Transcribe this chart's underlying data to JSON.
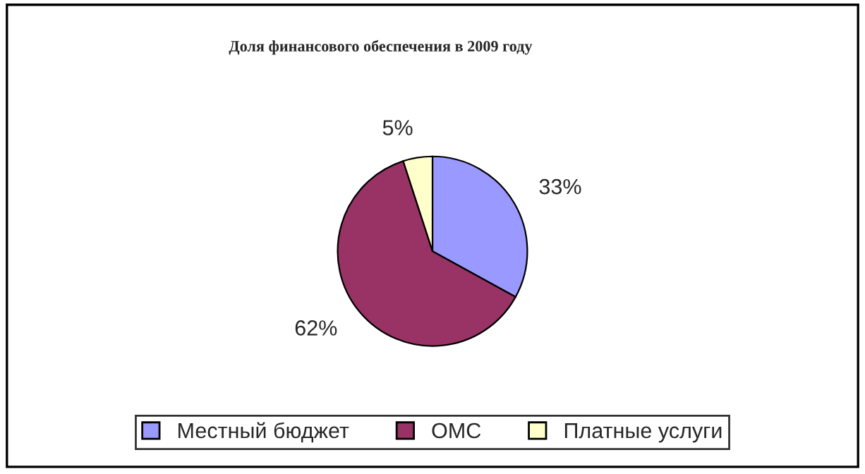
{
  "chart_data": {
    "type": "pie",
    "title": "Доля финансового обеспечения в 2009 году",
    "categories": [
      "Местный бюджет",
      "ОМС",
      "Платные услуги"
    ],
    "values": [
      33,
      62,
      5
    ],
    "colors": [
      "#9999ff",
      "#993366",
      "#ffffcc"
    ],
    "value_labels": [
      "33%",
      "62%",
      "5%"
    ],
    "legend": "bottom"
  }
}
